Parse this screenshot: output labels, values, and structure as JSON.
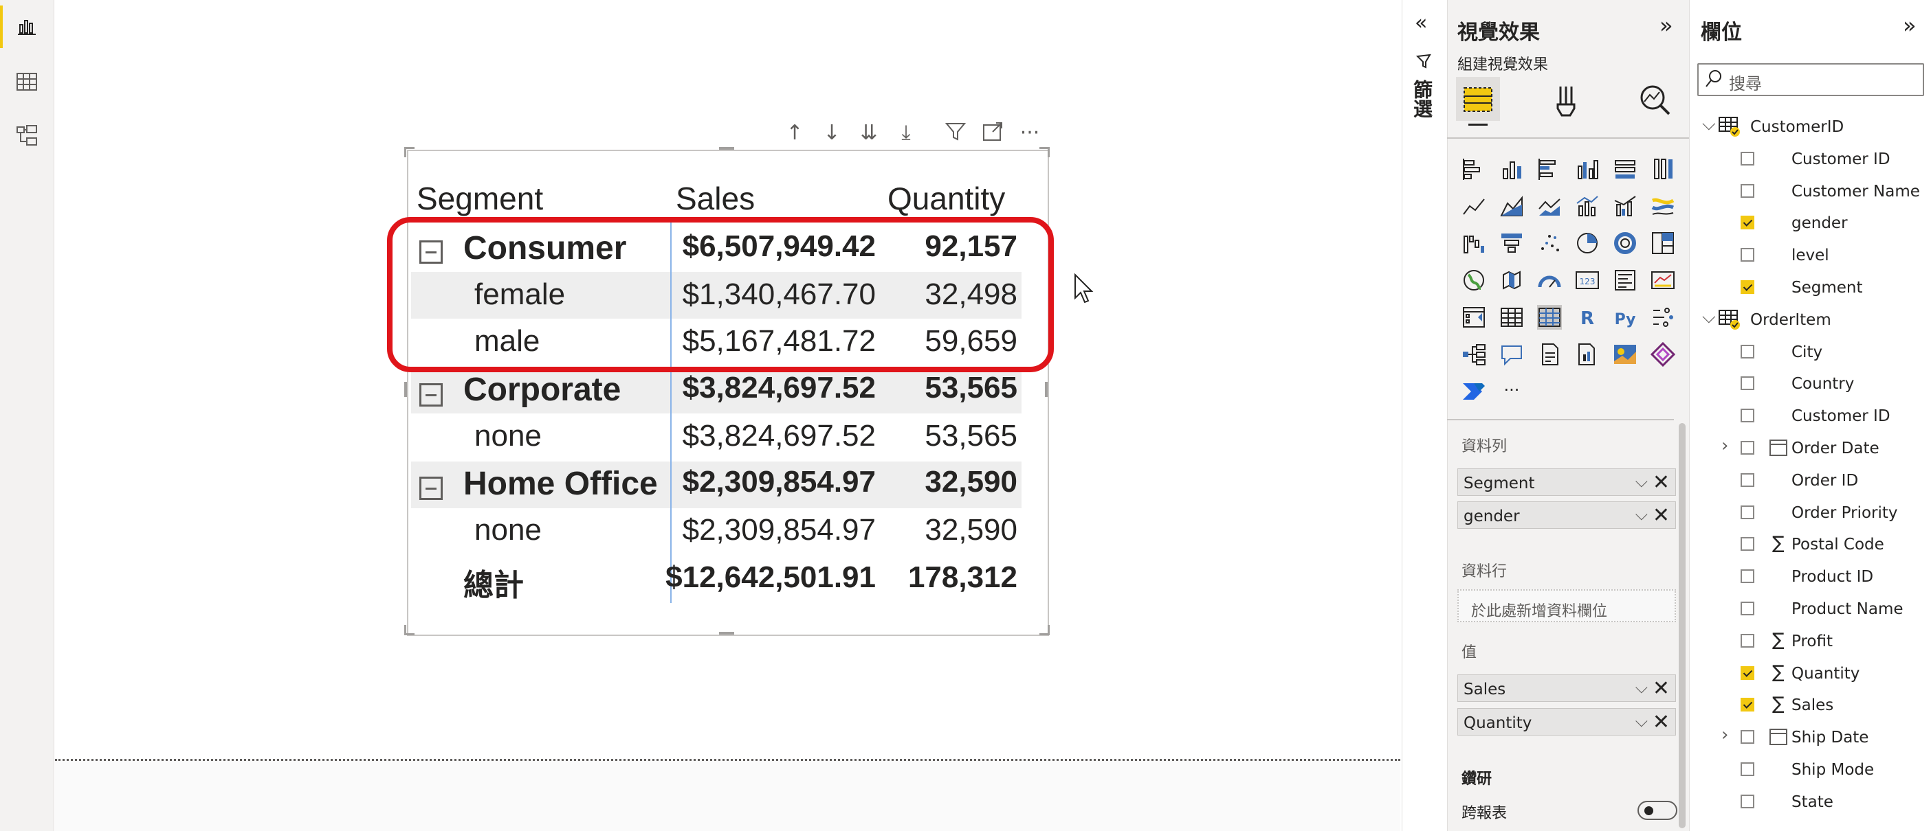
{
  "table": {
    "headers": [
      "Segment",
      "Sales",
      "Quantity"
    ],
    "rows": [
      {
        "label": "Consumer",
        "sales": "$6,507,949.42",
        "qty": "92,157"
      },
      {
        "label": "female",
        "sales": "$1,340,467.70",
        "qty": "32,498"
      },
      {
        "label": "male",
        "sales": "$5,167,481.72",
        "qty": "59,659"
      },
      {
        "label": "Corporate",
        "sales": "$3,824,697.52",
        "qty": "53,565"
      },
      {
        "label": "none",
        "sales": "$3,824,697.52",
        "qty": "53,565"
      },
      {
        "label": "Home Office",
        "sales": "$2,309,854.97",
        "qty": "32,590"
      },
      {
        "label": "none",
        "sales": "$2,309,854.97",
        "qty": "32,590"
      },
      {
        "label": "總計",
        "sales": "$12,642,501.91",
        "qty": "178,312"
      }
    ]
  },
  "filter_strip": {
    "label": "篩選"
  },
  "viz_pane": {
    "title": "視覺效果",
    "subtitle": "組建視覺效果",
    "wells": {
      "rows_label": "資料列",
      "rows": [
        "Segment",
        "gender"
      ],
      "columns_label": "資料行",
      "columns_placeholder": "於此處新增資料欄位",
      "values_label": "值",
      "values": [
        "Sales",
        "Quantity"
      ],
      "drill_label": "鑽研",
      "cross_report_label": "跨報表"
    },
    "cross_report_enabled": false,
    "icon_R": "R",
    "icon_Py": "Py",
    "more": "···"
  },
  "fields_pane": {
    "title": "欄位",
    "search_placeholder": "搜尋",
    "tables": [
      {
        "name": "CustomerID",
        "fields": [
          {
            "name": "Customer ID",
            "checked": false
          },
          {
            "name": "Customer Name",
            "checked": false
          },
          {
            "name": "gender",
            "checked": true
          },
          {
            "name": "level",
            "checked": false
          },
          {
            "name": "Segment",
            "checked": true
          }
        ]
      },
      {
        "name": "OrderItem",
        "fields": [
          {
            "name": "City",
            "checked": false
          },
          {
            "name": "Country",
            "checked": false
          },
          {
            "name": "Customer ID",
            "checked": false
          },
          {
            "name": "Order Date",
            "checked": false
          },
          {
            "name": "Order ID",
            "checked": false
          },
          {
            "name": "Order Priority",
            "checked": false
          },
          {
            "name": "Postal Code",
            "checked": false
          },
          {
            "name": "Product ID",
            "checked": false
          },
          {
            "name": "Product Name",
            "checked": false
          },
          {
            "name": "Profit",
            "checked": false
          },
          {
            "name": "Quantity",
            "checked": true
          },
          {
            "name": "Sales",
            "checked": true
          },
          {
            "name": "Ship Date",
            "checked": false
          },
          {
            "name": "Ship Mode",
            "checked": false
          },
          {
            "name": "State",
            "checked": false
          }
        ]
      }
    ]
  },
  "colors": {
    "accent": "#f2c811",
    "highlight": "#e0151a",
    "pane_bg": "#f3f2f1"
  }
}
